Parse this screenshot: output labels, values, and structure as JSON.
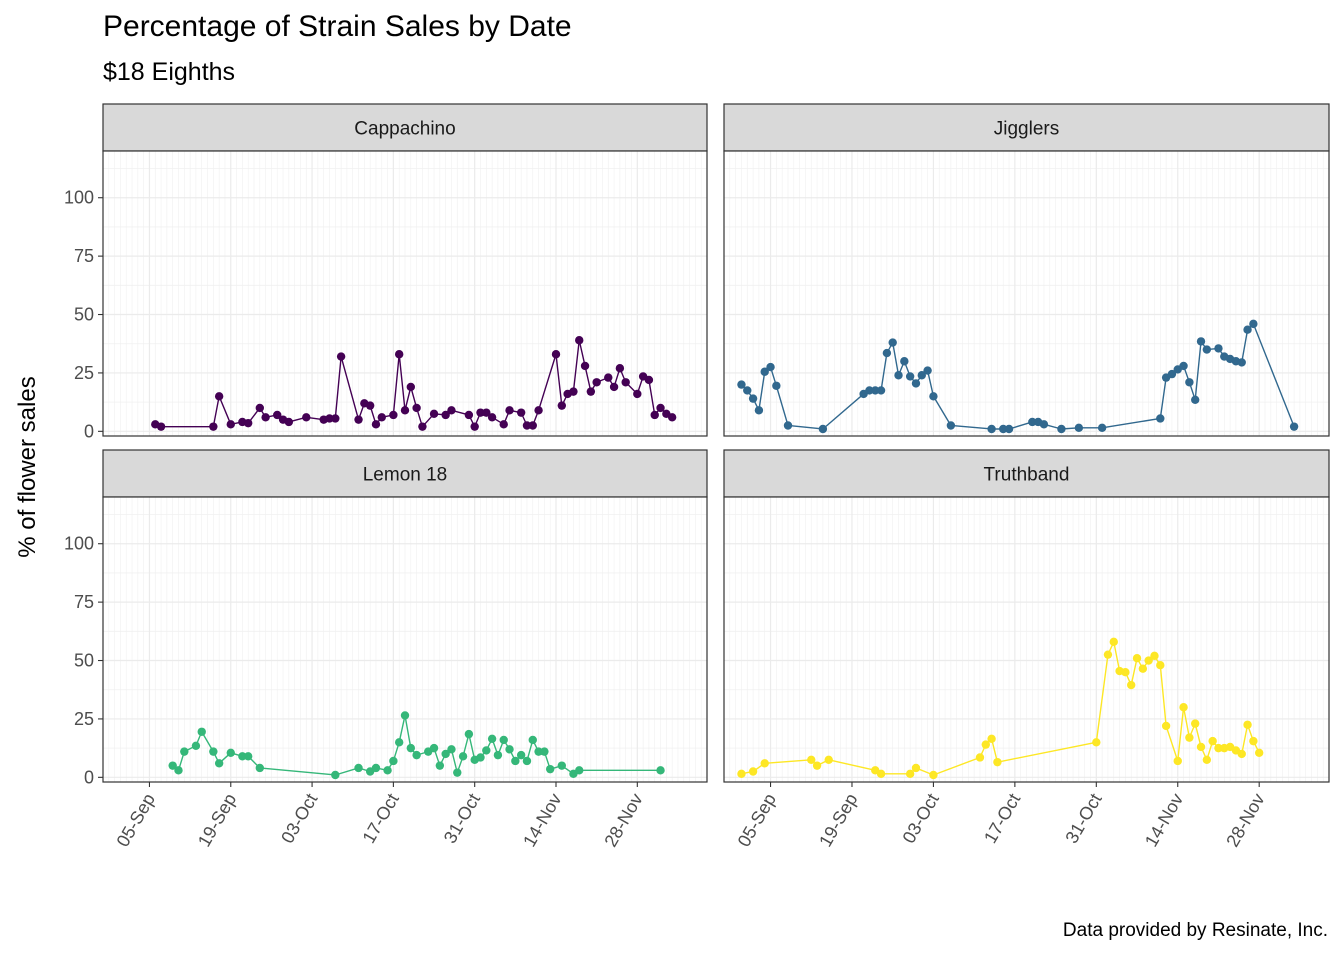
{
  "title": "Percentage of Strain Sales by Date",
  "subtitle": "$18 Eighths",
  "caption": "Data provided by Resinate, Inc.",
  "chart_data": {
    "type": "line",
    "facet_layout": "2x2",
    "ylabel": "% of flower sales",
    "xlabel": "",
    "ylim": [
      -2,
      120
    ],
    "yticks": [
      0,
      25,
      50,
      75,
      100
    ],
    "x_axis": {
      "type": "date",
      "year": 2018,
      "xlim": [
        "2018-08-28",
        "2018-12-10"
      ],
      "tick_dates": [
        "2018-09-05",
        "2018-09-19",
        "2018-10-03",
        "2018-10-17",
        "2018-10-31",
        "2018-11-14",
        "2018-11-28"
      ],
      "tick_labels": [
        "05-Sep",
        "19-Sep",
        "03-Oct",
        "17-Oct",
        "31-Oct",
        "14-Nov",
        "28-Nov"
      ]
    },
    "grid": true,
    "legend": "none",
    "series": [
      {
        "name": "Cappachino",
        "color": "#440154",
        "points": [
          [
            "2018-09-06",
            3
          ],
          [
            "2018-09-07",
            2
          ],
          [
            "2018-09-16",
            2
          ],
          [
            "2018-09-17",
            15
          ],
          [
            "2018-09-19",
            3
          ],
          [
            "2018-09-21",
            4
          ],
          [
            "2018-09-22",
            3.5
          ],
          [
            "2018-09-24",
            10
          ],
          [
            "2018-09-25",
            6
          ],
          [
            "2018-09-27",
            7
          ],
          [
            "2018-09-28",
            5
          ],
          [
            "2018-09-29",
            4
          ],
          [
            "2018-10-02",
            6
          ],
          [
            "2018-10-05",
            5
          ],
          [
            "2018-10-06",
            5.5
          ],
          [
            "2018-10-07",
            5.5
          ],
          [
            "2018-10-08",
            32
          ],
          [
            "2018-10-11",
            5
          ],
          [
            "2018-10-12",
            12
          ],
          [
            "2018-10-13",
            11
          ],
          [
            "2018-10-14",
            3
          ],
          [
            "2018-10-15",
            6
          ],
          [
            "2018-10-17",
            7
          ],
          [
            "2018-10-18",
            33
          ],
          [
            "2018-10-19",
            9
          ],
          [
            "2018-10-20",
            19
          ],
          [
            "2018-10-21",
            10
          ],
          [
            "2018-10-22",
            2
          ],
          [
            "2018-10-24",
            7.5
          ],
          [
            "2018-10-26",
            7
          ],
          [
            "2018-10-27",
            9
          ],
          [
            "2018-10-30",
            7
          ],
          [
            "2018-10-31",
            2
          ],
          [
            "2018-11-01",
            8
          ],
          [
            "2018-11-02",
            8
          ],
          [
            "2018-11-03",
            6
          ],
          [
            "2018-11-05",
            3
          ],
          [
            "2018-11-06",
            9
          ],
          [
            "2018-11-08",
            8
          ],
          [
            "2018-11-09",
            2.5
          ],
          [
            "2018-11-10",
            2.5
          ],
          [
            "2018-11-11",
            9
          ],
          [
            "2018-11-14",
            33
          ],
          [
            "2018-11-15",
            11
          ],
          [
            "2018-11-16",
            16
          ],
          [
            "2018-11-17",
            17
          ],
          [
            "2018-11-18",
            39
          ],
          [
            "2018-11-19",
            28
          ],
          [
            "2018-11-20",
            17
          ],
          [
            "2018-11-21",
            21
          ],
          [
            "2018-11-23",
            23
          ],
          [
            "2018-11-24",
            19
          ],
          [
            "2018-11-25",
            27
          ],
          [
            "2018-11-26",
            21
          ],
          [
            "2018-11-28",
            16
          ],
          [
            "2018-11-29",
            23.5
          ],
          [
            "2018-11-30",
            22
          ],
          [
            "2018-12-01",
            7
          ],
          [
            "2018-12-02",
            10
          ],
          [
            "2018-12-03",
            7.5
          ],
          [
            "2018-12-04",
            6
          ]
        ]
      },
      {
        "name": "Jigglers",
        "color": "#31688E",
        "points": [
          [
            "2018-08-31",
            20
          ],
          [
            "2018-09-01",
            17.5
          ],
          [
            "2018-09-02",
            14
          ],
          [
            "2018-09-03",
            9
          ],
          [
            "2018-09-04",
            25.5
          ],
          [
            "2018-09-05",
            27.5
          ],
          [
            "2018-09-06",
            19.5
          ],
          [
            "2018-09-08",
            2.5
          ],
          [
            "2018-09-14",
            1
          ],
          [
            "2018-09-21",
            16
          ],
          [
            "2018-09-22",
            17.5
          ],
          [
            "2018-09-23",
            17.5
          ],
          [
            "2018-09-24",
            17.5
          ],
          [
            "2018-09-25",
            33.5
          ],
          [
            "2018-09-26",
            38
          ],
          [
            "2018-09-27",
            24
          ],
          [
            "2018-09-28",
            30
          ],
          [
            "2018-09-29",
            23.5
          ],
          [
            "2018-09-30",
            20.5
          ],
          [
            "2018-10-01",
            24
          ],
          [
            "2018-10-02",
            26
          ],
          [
            "2018-10-03",
            15
          ],
          [
            "2018-10-06",
            2.5
          ],
          [
            "2018-10-13",
            1
          ],
          [
            "2018-10-15",
            1
          ],
          [
            "2018-10-16",
            1
          ],
          [
            "2018-10-20",
            4
          ],
          [
            "2018-10-21",
            4
          ],
          [
            "2018-10-22",
            3
          ],
          [
            "2018-10-25",
            1
          ],
          [
            "2018-10-28",
            1.5
          ],
          [
            "2018-11-01",
            1.5
          ],
          [
            "2018-11-11",
            5.5
          ],
          [
            "2018-11-12",
            23
          ],
          [
            "2018-11-13",
            24.5
          ],
          [
            "2018-11-14",
            26.5
          ],
          [
            "2018-11-15",
            28
          ],
          [
            "2018-11-16",
            21
          ],
          [
            "2018-11-17",
            13.5
          ],
          [
            "2018-11-18",
            38.5
          ],
          [
            "2018-11-19",
            35
          ],
          [
            "2018-11-21",
            35.5
          ],
          [
            "2018-11-22",
            32
          ],
          [
            "2018-11-23",
            31
          ],
          [
            "2018-11-24",
            30
          ],
          [
            "2018-11-25",
            29.5
          ],
          [
            "2018-11-26",
            43.5
          ],
          [
            "2018-11-27",
            46
          ],
          [
            "2018-12-04",
            2
          ]
        ]
      },
      {
        "name": "Lemon 18",
        "color": "#35B779",
        "points": [
          [
            "2018-09-09",
            5
          ],
          [
            "2018-09-10",
            3
          ],
          [
            "2018-09-11",
            11
          ],
          [
            "2018-09-13",
            13.5
          ],
          [
            "2018-09-14",
            19.5
          ],
          [
            "2018-09-16",
            11
          ],
          [
            "2018-09-17",
            6
          ],
          [
            "2018-09-19",
            10.5
          ],
          [
            "2018-09-21",
            9
          ],
          [
            "2018-09-22",
            9
          ],
          [
            "2018-09-24",
            4
          ],
          [
            "2018-10-07",
            1
          ],
          [
            "2018-10-11",
            4
          ],
          [
            "2018-10-13",
            2.5
          ],
          [
            "2018-10-14",
            4
          ],
          [
            "2018-10-16",
            3
          ],
          [
            "2018-10-17",
            7
          ],
          [
            "2018-10-18",
            15
          ],
          [
            "2018-10-19",
            26.5
          ],
          [
            "2018-10-20",
            12.5
          ],
          [
            "2018-10-21",
            9.5
          ],
          [
            "2018-10-23",
            11
          ],
          [
            "2018-10-24",
            12.5
          ],
          [
            "2018-10-25",
            5
          ],
          [
            "2018-10-26",
            10
          ],
          [
            "2018-10-27",
            12
          ],
          [
            "2018-10-28",
            2
          ],
          [
            "2018-10-29",
            9
          ],
          [
            "2018-10-30",
            18.5
          ],
          [
            "2018-10-31",
            7.5
          ],
          [
            "2018-11-01",
            8.5
          ],
          [
            "2018-11-02",
            11.5
          ],
          [
            "2018-11-03",
            16.5
          ],
          [
            "2018-11-04",
            9.5
          ],
          [
            "2018-11-05",
            16
          ],
          [
            "2018-11-06",
            12
          ],
          [
            "2018-11-07",
            7
          ],
          [
            "2018-11-08",
            9.5
          ],
          [
            "2018-11-09",
            7
          ],
          [
            "2018-11-10",
            16
          ],
          [
            "2018-11-11",
            11
          ],
          [
            "2018-11-12",
            11
          ],
          [
            "2018-11-13",
            3.5
          ],
          [
            "2018-11-15",
            5
          ],
          [
            "2018-11-17",
            1.5
          ],
          [
            "2018-11-18",
            3
          ],
          [
            "2018-12-02",
            3
          ]
        ]
      },
      {
        "name": "Truthband",
        "color": "#FDE725",
        "points": [
          [
            "2018-08-31",
            1.5
          ],
          [
            "2018-09-02",
            2.5
          ],
          [
            "2018-09-04",
            6
          ],
          [
            "2018-09-12",
            7.5
          ],
          [
            "2018-09-13",
            5
          ],
          [
            "2018-09-15",
            7.5
          ],
          [
            "2018-09-23",
            3
          ],
          [
            "2018-09-24",
            1.5
          ],
          [
            "2018-09-29",
            1.5
          ],
          [
            "2018-09-30",
            4
          ],
          [
            "2018-10-03",
            1
          ],
          [
            "2018-10-11",
            8.5
          ],
          [
            "2018-10-12",
            14
          ],
          [
            "2018-10-13",
            16.5
          ],
          [
            "2018-10-14",
            6.5
          ],
          [
            "2018-10-31",
            15
          ],
          [
            "2018-11-02",
            52.5
          ],
          [
            "2018-11-03",
            58
          ],
          [
            "2018-11-04",
            45.5
          ],
          [
            "2018-11-05",
            45
          ],
          [
            "2018-11-06",
            39.5
          ],
          [
            "2018-11-07",
            51
          ],
          [
            "2018-11-08",
            46.5
          ],
          [
            "2018-11-09",
            50
          ],
          [
            "2018-11-10",
            52
          ],
          [
            "2018-11-11",
            48
          ],
          [
            "2018-11-12",
            22
          ],
          [
            "2018-11-14",
            7
          ],
          [
            "2018-11-15",
            30
          ],
          [
            "2018-11-16",
            17
          ],
          [
            "2018-11-17",
            23
          ],
          [
            "2018-11-18",
            13
          ],
          [
            "2018-11-19",
            7.5
          ],
          [
            "2018-11-20",
            15.5
          ],
          [
            "2018-11-21",
            12.5
          ],
          [
            "2018-11-22",
            12.5
          ],
          [
            "2018-11-23",
            13
          ],
          [
            "2018-11-24",
            11.5
          ],
          [
            "2018-11-25",
            10
          ],
          [
            "2018-11-26",
            22.5
          ],
          [
            "2018-11-27",
            15.5
          ],
          [
            "2018-11-28",
            10.5
          ]
        ]
      }
    ]
  }
}
